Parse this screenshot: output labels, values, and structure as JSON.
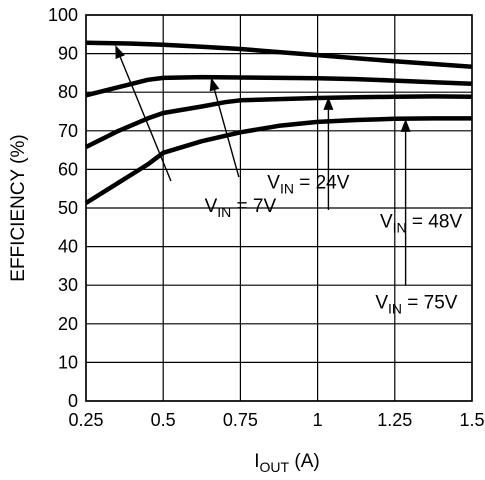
{
  "chart_data": {
    "type": "line",
    "xlabel": "I",
    "xlabel_sub": "OUT",
    "xlabel_unit": " (A)",
    "ylabel": "EFFICIENCY (%)",
    "xlim": [
      0.25,
      1.5
    ],
    "ylim": [
      0,
      100
    ],
    "grid": true,
    "x_ticks": [
      {
        "value": 0.25,
        "label": "0.25"
      },
      {
        "value": 0.5,
        "label": "0.5"
      },
      {
        "value": 0.75,
        "label": "0.75"
      },
      {
        "value": 1.0,
        "label": "1"
      },
      {
        "value": 1.25,
        "label": "1.25"
      },
      {
        "value": 1.5,
        "label": "1.5"
      }
    ],
    "y_ticks": [
      {
        "value": 0,
        "label": "0"
      },
      {
        "value": 10,
        "label": "10"
      },
      {
        "value": 20,
        "label": "20"
      },
      {
        "value": 30,
        "label": "30"
      },
      {
        "value": 40,
        "label": "40"
      },
      {
        "value": 50,
        "label": "50"
      },
      {
        "value": 60,
        "label": "60"
      },
      {
        "value": 70,
        "label": "70"
      },
      {
        "value": 80,
        "label": "80"
      },
      {
        "value": 90,
        "label": "90"
      },
      {
        "value": 100,
        "label": "100"
      }
    ],
    "series": [
      {
        "id": "vin-7v",
        "label_main": "V",
        "label_sub": "IN",
        "label_rest": " = 7V",
        "points": [
          [
            0.25,
            92.8
          ],
          [
            0.4,
            92.6
          ],
          [
            0.5,
            92.3
          ],
          [
            0.625,
            91.8
          ],
          [
            0.75,
            91.2
          ],
          [
            0.875,
            90.4
          ],
          [
            1.0,
            89.6
          ],
          [
            1.125,
            88.8
          ],
          [
            1.25,
            88.0
          ],
          [
            1.375,
            87.3
          ],
          [
            1.5,
            86.6
          ]
        ],
        "label_anchor": [
          0.75,
          49
        ],
        "arrow_from": [
          0.525,
          57
        ],
        "arrow_to": [
          0.345,
          92.2
        ]
      },
      {
        "id": "vin-24v",
        "label_main": "V",
        "label_sub": "IN",
        "label_rest": " = 24V",
        "points": [
          [
            0.25,
            79.2
          ],
          [
            0.35,
            81.2
          ],
          [
            0.45,
            83.2
          ],
          [
            0.5,
            83.7
          ],
          [
            0.625,
            83.9
          ],
          [
            0.75,
            83.8
          ],
          [
            1.0,
            83.6
          ],
          [
            1.125,
            83.4
          ],
          [
            1.25,
            83.0
          ],
          [
            1.375,
            82.6
          ],
          [
            1.5,
            82.2
          ]
        ],
        "label_anchor": [
          0.97,
          55
        ],
        "arrow_from": [
          0.745,
          58
        ],
        "arrow_to": [
          0.655,
          83.8
        ]
      },
      {
        "id": "vin-48v",
        "label_main": "V",
        "label_sub": "IN",
        "label_rest": " = 48V",
        "points": [
          [
            0.25,
            65.8
          ],
          [
            0.35,
            69.8
          ],
          [
            0.45,
            73.2
          ],
          [
            0.5,
            74.6
          ],
          [
            0.625,
            76.3
          ],
          [
            0.7,
            77.4
          ],
          [
            0.75,
            77.9
          ],
          [
            0.875,
            78.2
          ],
          [
            1.0,
            78.5
          ],
          [
            1.125,
            78.7
          ],
          [
            1.25,
            78.8
          ],
          [
            1.375,
            78.9
          ],
          [
            1.5,
            78.8
          ]
        ],
        "label_anchor": [
          1.335,
          45
        ],
        "arrow_from": [
          1.035,
          49.5
        ],
        "arrow_to": [
          1.035,
          78.8
        ]
      },
      {
        "id": "vin-75v",
        "label_main": "V",
        "label_sub": "IN",
        "label_rest": " = 75V",
        "points": [
          [
            0.25,
            51.3
          ],
          [
            0.35,
            56.3
          ],
          [
            0.45,
            61.3
          ],
          [
            0.5,
            64.3
          ],
          [
            0.625,
            67.3
          ],
          [
            0.75,
            69.6
          ],
          [
            0.875,
            71.3
          ],
          [
            1.0,
            72.3
          ],
          [
            1.125,
            72.8
          ],
          [
            1.25,
            73.1
          ],
          [
            1.375,
            73.2
          ],
          [
            1.5,
            73.2
          ]
        ],
        "label_anchor": [
          1.32,
          24
        ],
        "arrow_from": [
          1.285,
          30
        ],
        "arrow_to": [
          1.285,
          73.1
        ]
      }
    ]
  }
}
